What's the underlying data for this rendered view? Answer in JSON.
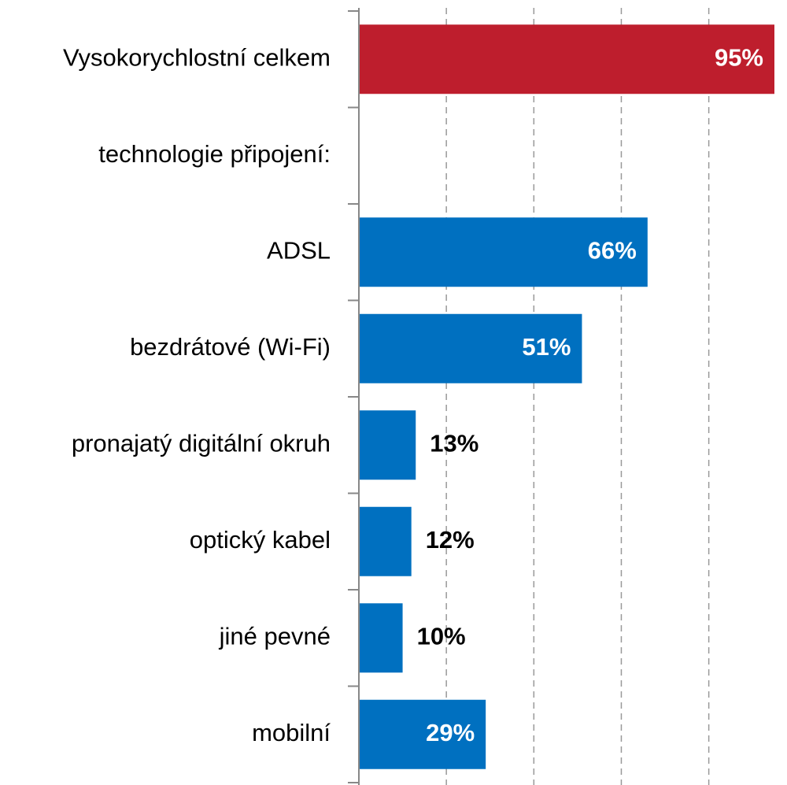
{
  "chart_data": {
    "type": "barh",
    "categories": [
      "Vysokorychlostní celkem",
      "technologie připojení:",
      "ADSL",
      "bezdrátové (Wi-Fi)",
      "pronajatý digitální okruh",
      "optický kabel",
      "jiné pevné",
      "mobilní"
    ],
    "values": [
      95,
      null,
      66,
      51,
      13,
      12,
      10,
      29
    ],
    "value_labels": [
      "95%",
      null,
      "66%",
      "51%",
      "13%",
      "12%",
      "10%",
      "29%"
    ],
    "colors": [
      "#be1e2d",
      null,
      "#0070c0",
      "#0070c0",
      "#0070c0",
      "#0070c0",
      "#0070c0",
      "#0070c0"
    ],
    "xlim": [
      0,
      95
    ],
    "xticks": [
      0,
      20,
      40,
      60,
      80
    ],
    "grid": true
  }
}
